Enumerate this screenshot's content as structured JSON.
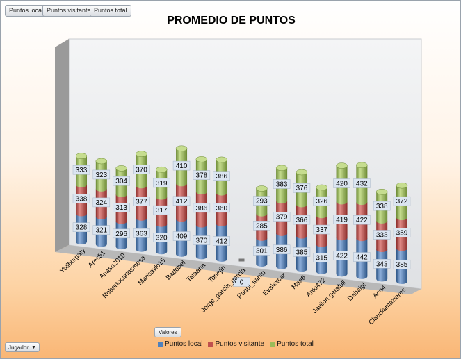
{
  "filter_buttons": [
    "Puntos local",
    "Puntos visitante",
    "Puntos total"
  ],
  "valores_button": "Valores",
  "jugador_dropdown": "Jugador",
  "colors": {
    "local": "#4f81bd",
    "visitante": "#c0504d",
    "total": "#9bbb59"
  },
  "chart_data": {
    "type": "bar",
    "stacked": true,
    "style": "3d-cylinder",
    "title": "PROMEDIO DE PUNTOS",
    "legend_position": "bottom",
    "categories": [
      "Yollburgaty",
      "Ares51",
      "Anaso2010",
      "Robertocarlosmesa",
      "Marisavlc15",
      "Badobel",
      "Tataana",
      "Tonejin",
      "Jorge_garcia_garcia",
      "Paqui_santo",
      "Evalexcar",
      "Mae6",
      "Anlo472",
      "Javilon getafull",
      "Dabalgi",
      "Aco4",
      "Claudiamazieres"
    ],
    "series": [
      {
        "name": "Puntos local",
        "values": [
          328,
          321,
          296,
          363,
          320,
          409,
          370,
          412,
          0,
          301,
          386,
          385,
          315,
          422,
          442,
          343,
          385
        ]
      },
      {
        "name": "Puntos visitante",
        "values": [
          338,
          324,
          313,
          377,
          317,
          412,
          386,
          360,
          0,
          285,
          379,
          366,
          337,
          419,
          422,
          333,
          359
        ]
      },
      {
        "name": "Puntos total",
        "values": [
          333,
          323,
          304,
          370,
          319,
          410,
          378,
          386,
          0,
          293,
          383,
          376,
          326,
          420,
          432,
          338,
          372
        ]
      }
    ]
  }
}
